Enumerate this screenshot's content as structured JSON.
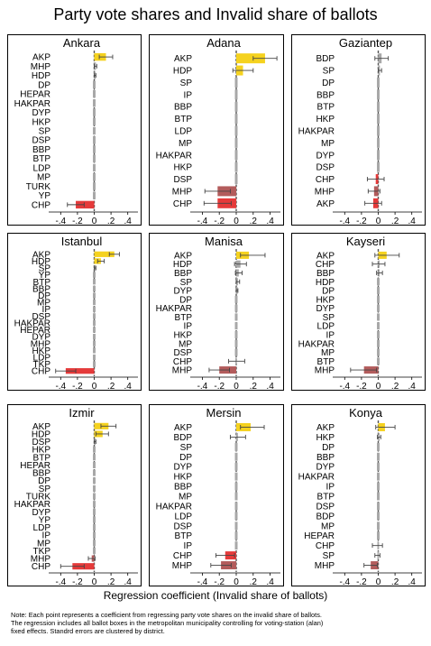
{
  "title": "Party vote shares and Invalid share of ballots",
  "x_axis_label": "Regression coefficient (Invalid share of ballots)",
  "note_lines": [
    "Note: Each point represents a coefficient from regressing party vote shares on the invalid share of ballots.",
    "The regression includes all ballot boxes in the metropolitan municipality controlling for voting-station (alan)",
    "fixed effects. Standrd errors are clustered by district."
  ],
  "colors": {
    "positive": "#f5d21f",
    "negative": "#e53a3a",
    "neutral": "#a8a8a8",
    "negative_dark": "#b35c5c",
    "zero_line": "#555555"
  },
  "x_ticks": [
    "-.4",
    "-.2",
    "0",
    ".2",
    ".4"
  ],
  "chart_data": [
    {
      "type": "bar",
      "title": "Ankara",
      "xlim": [
        -0.5,
        0.5
      ],
      "categories": [
        "AKP",
        "MHP",
        "HDP",
        "DP",
        "HEPAR",
        "HAKPAR",
        "DYP",
        "HKP",
        "SP",
        "DSP",
        "BBP",
        "BTP",
        "LDP",
        "MP",
        "TURK",
        "YP",
        "CHP"
      ],
      "values": [
        0.14,
        0.02,
        0.01,
        0.0,
        0.0,
        0.0,
        0.0,
        0.0,
        0.0,
        0.0,
        0.0,
        0.0,
        0.0,
        0.0,
        0.0,
        0.0,
        -0.22
      ],
      "ci_low": [
        0.06,
        0.0,
        0.0,
        0.0,
        0.0,
        0.0,
        0.0,
        0.0,
        0.0,
        0.0,
        0.0,
        0.0,
        0.0,
        0.0,
        0.0,
        0.0,
        -0.32
      ],
      "ci_high": [
        0.22,
        0.03,
        0.02,
        0.0,
        0.0,
        0.0,
        0.0,
        0.0,
        0.0,
        0.0,
        0.0,
        0.0,
        0.0,
        0.0,
        0.0,
        0.0,
        -0.12
      ]
    },
    {
      "type": "bar",
      "title": "Adana",
      "xlim": [
        -0.5,
        0.5
      ],
      "categories": [
        "AKP",
        "HDP",
        "SP",
        "IP",
        "BBP",
        "BTP",
        "LDP",
        "MP",
        "HAKPAR",
        "HKP",
        "DSP",
        "MHP",
        "CHP"
      ],
      "values": [
        0.34,
        0.08,
        0.0,
        0.0,
        0.0,
        0.0,
        0.0,
        0.0,
        0.0,
        0.0,
        0.0,
        -0.22,
        -0.22
      ],
      "ci_low": [
        0.2,
        -0.04,
        0.0,
        0.0,
        0.0,
        0.0,
        0.0,
        0.0,
        0.0,
        0.0,
        0.0,
        -0.37,
        -0.38
      ],
      "ci_high": [
        0.48,
        0.2,
        0.0,
        0.0,
        0.0,
        0.0,
        0.0,
        0.0,
        0.0,
        0.0,
        0.0,
        -0.07,
        -0.06
      ]
    },
    {
      "type": "bar",
      "title": "Gaziantep",
      "xlim": [
        -0.5,
        0.5
      ],
      "categories": [
        "BDP",
        "SP",
        "DP",
        "BBP",
        "BTP",
        "HKP",
        "HAKPAR",
        "MP",
        "DYP",
        "DSP",
        "CHP",
        "MHP",
        "AKP"
      ],
      "values": [
        0.04,
        0.02,
        0.0,
        0.0,
        0.0,
        0.0,
        0.0,
        0.0,
        0.0,
        0.0,
        -0.03,
        -0.05,
        -0.06
      ],
      "ci_low": [
        -0.04,
        0.0,
        0.0,
        0.0,
        0.0,
        0.0,
        0.0,
        0.0,
        0.0,
        0.0,
        -0.13,
        -0.12,
        -0.16
      ],
      "ci_high": [
        0.12,
        0.04,
        0.0,
        0.0,
        0.0,
        0.0,
        0.0,
        0.0,
        0.0,
        0.0,
        0.07,
        0.02,
        0.04
      ]
    },
    {
      "type": "bar",
      "title": "Istanbul",
      "xlim": [
        -0.5,
        0.5
      ],
      "categories": [
        "AKP",
        "HDP",
        "SP",
        "YP",
        "BTP",
        "BBP",
        "DP",
        "MP",
        "IP",
        "DSP",
        "HAKPAR",
        "HEPAR",
        "DYP",
        "MHP",
        "HKP",
        "LDP",
        "TKP",
        "CHP"
      ],
      "values": [
        0.24,
        0.08,
        0.01,
        0.0,
        0.0,
        0.0,
        0.0,
        0.0,
        0.0,
        0.0,
        0.0,
        0.0,
        0.0,
        0.0,
        0.0,
        0.0,
        0.0,
        -0.34
      ],
      "ci_low": [
        0.18,
        0.04,
        0.0,
        0.0,
        0.0,
        0.0,
        0.0,
        0.0,
        0.0,
        0.0,
        0.0,
        0.0,
        0.0,
        0.0,
        0.0,
        0.0,
        0.0,
        -0.46
      ],
      "ci_high": [
        0.3,
        0.12,
        0.02,
        0.0,
        0.0,
        0.0,
        0.0,
        0.0,
        0.0,
        0.0,
        0.0,
        0.0,
        0.0,
        0.0,
        0.0,
        0.0,
        0.0,
        -0.22
      ]
    },
    {
      "type": "bar",
      "title": "Manisa",
      "xlim": [
        -0.5,
        0.5
      ],
      "categories": [
        "AKP",
        "HDP",
        "BBP",
        "SP",
        "DYP",
        "DP",
        "HAKPAR",
        "BTP",
        "IP",
        "HKP",
        "MP",
        "DSP",
        "CHP",
        "MHP"
      ],
      "values": [
        0.15,
        0.05,
        0.03,
        0.02,
        0.01,
        0.0,
        0.0,
        0.0,
        0.0,
        0.0,
        0.0,
        0.0,
        -0.01,
        -0.2
      ],
      "ci_low": [
        0.05,
        -0.02,
        -0.01,
        0.0,
        0.0,
        0.0,
        0.0,
        0.0,
        0.0,
        0.0,
        0.0,
        0.0,
        -0.09,
        -0.32
      ],
      "ci_high": [
        0.34,
        0.12,
        0.07,
        0.04,
        0.02,
        0.0,
        0.0,
        0.0,
        0.0,
        0.0,
        0.0,
        0.0,
        0.1,
        -0.08
      ]
    },
    {
      "type": "bar",
      "title": "Kayseri",
      "xlim": [
        -0.5,
        0.5
      ],
      "categories": [
        "AKP",
        "CHP",
        "BBP",
        "HDP",
        "DP",
        "HKP",
        "DYP",
        "SP",
        "LDP",
        "IP",
        "HAKPAR",
        "MP",
        "BTP",
        "MHP"
      ],
      "values": [
        0.1,
        0.01,
        0.01,
        0.0,
        0.0,
        0.0,
        0.0,
        0.0,
        0.0,
        0.0,
        0.0,
        0.0,
        0.0,
        -0.17
      ],
      "ci_low": [
        -0.04,
        -0.07,
        -0.02,
        0.0,
        0.0,
        0.0,
        0.0,
        0.0,
        0.0,
        0.0,
        0.0,
        0.0,
        0.0,
        -0.33
      ],
      "ci_high": [
        0.25,
        0.08,
        0.05,
        0.0,
        0.0,
        0.0,
        0.0,
        0.0,
        0.0,
        0.0,
        0.0,
        0.0,
        0.0,
        -0.02
      ]
    },
    {
      "type": "bar",
      "title": "Izmir",
      "xlim": [
        -0.5,
        0.5
      ],
      "categories": [
        "AKP",
        "HDP",
        "DSP",
        "HKP",
        "BTP",
        "HEPAR",
        "BBP",
        "DP",
        "SP",
        "TURK",
        "HAKPAR",
        "DYP",
        "YP",
        "LDP",
        "IP",
        "MP",
        "TKP",
        "MHP",
        "CHP"
      ],
      "values": [
        0.17,
        0.1,
        0.01,
        0.0,
        0.0,
        0.0,
        0.0,
        0.0,
        0.0,
        0.0,
        0.0,
        0.0,
        0.0,
        0.0,
        0.0,
        0.0,
        0.0,
        -0.03,
        -0.26
      ],
      "ci_low": [
        0.08,
        0.02,
        0.0,
        0.0,
        0.0,
        0.0,
        0.0,
        0.0,
        0.0,
        0.0,
        0.0,
        0.0,
        0.0,
        0.0,
        0.0,
        0.0,
        0.0,
        -0.07,
        -0.4
      ],
      "ci_high": [
        0.26,
        0.17,
        0.02,
        0.0,
        0.0,
        0.0,
        0.0,
        0.0,
        0.0,
        0.0,
        0.0,
        0.0,
        0.0,
        0.0,
        0.0,
        0.0,
        0.0,
        0.01,
        -0.12
      ]
    },
    {
      "type": "bar",
      "title": "Mersin",
      "xlim": [
        -0.5,
        0.5
      ],
      "categories": [
        "AKP",
        "BDP",
        "SP",
        "DP",
        "DYP",
        "HKP",
        "BBP",
        "MP",
        "HAKPAR",
        "LDP",
        "DSP",
        "BTP",
        "IP",
        "CHP",
        "MHP"
      ],
      "values": [
        0.17,
        0.02,
        0.0,
        0.0,
        0.0,
        0.0,
        0.0,
        0.0,
        0.0,
        0.0,
        0.0,
        0.0,
        0.0,
        -0.13,
        -0.18
      ],
      "ci_low": [
        0.05,
        -0.07,
        0.0,
        0.0,
        0.0,
        0.0,
        0.0,
        0.0,
        0.0,
        0.0,
        0.0,
        0.0,
        0.0,
        -0.24,
        -0.3
      ],
      "ci_high": [
        0.33,
        0.11,
        0.0,
        0.0,
        0.0,
        0.0,
        0.0,
        0.0,
        0.0,
        0.0,
        0.0,
        0.0,
        0.0,
        -0.02,
        -0.06
      ]
    },
    {
      "type": "bar",
      "title": "Konya",
      "xlim": [
        -0.5,
        0.5
      ],
      "categories": [
        "AKP",
        "HKP",
        "DP",
        "BBP",
        "DYP",
        "HAKPAR",
        "IP",
        "BTP",
        "DSP",
        "BDP",
        "MP",
        "HEPAR",
        "CHP",
        "SP",
        "MHP"
      ],
      "values": [
        0.08,
        0.01,
        0.0,
        0.0,
        0.0,
        0.0,
        0.0,
        0.0,
        0.0,
        0.0,
        0.0,
        0.0,
        -0.01,
        -0.01,
        -0.09
      ],
      "ci_low": [
        -0.03,
        -0.01,
        0.0,
        0.0,
        0.0,
        0.0,
        0.0,
        0.0,
        0.0,
        0.0,
        0.0,
        0.0,
        -0.07,
        -0.04,
        -0.17
      ],
      "ci_high": [
        0.2,
        0.03,
        0.0,
        0.0,
        0.0,
        0.0,
        0.0,
        0.0,
        0.0,
        0.0,
        0.0,
        0.0,
        0.05,
        0.02,
        -0.01
      ]
    }
  ]
}
